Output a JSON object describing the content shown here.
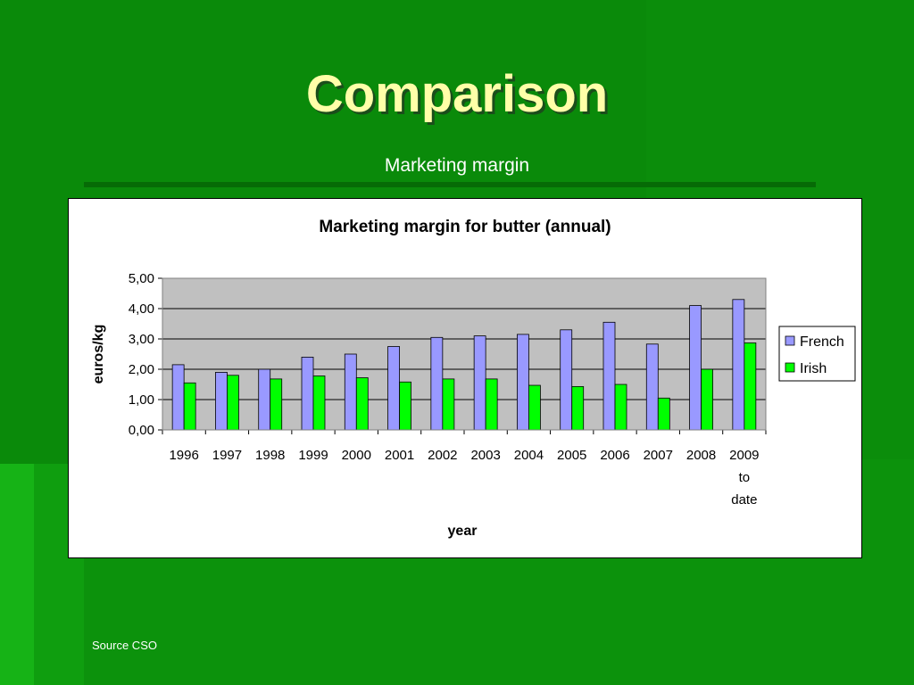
{
  "slide": {
    "title": "Comparison",
    "subtitle": "Marketing margin",
    "source": "Source CSO"
  },
  "colors": {
    "french": "#9999ff",
    "irish": "#00ff00",
    "plot_bg": "#c0c0c0"
  },
  "chart_data": {
    "type": "bar",
    "title": "Marketing margin for butter (annual)",
    "xlabel": "year",
    "ylabel": "euros/kg",
    "categories": [
      "1996",
      "1997",
      "1998",
      "1999",
      "2000",
      "2001",
      "2002",
      "2003",
      "2004",
      "2005",
      "2006",
      "2007",
      "2008",
      "2009 to date"
    ],
    "series": [
      {
        "name": "French",
        "values": [
          2.15,
          1.9,
          2.0,
          2.4,
          2.5,
          2.75,
          3.05,
          3.1,
          3.15,
          3.3,
          3.55,
          2.83,
          4.1,
          4.3
        ]
      },
      {
        "name": "Irish",
        "values": [
          1.55,
          1.8,
          1.68,
          1.78,
          1.72,
          1.58,
          1.68,
          1.68,
          1.47,
          1.43,
          1.5,
          1.05,
          2.0,
          2.87
        ]
      }
    ],
    "ylim": [
      0,
      5
    ],
    "yticks": [
      "0,00",
      "1,00",
      "2,00",
      "3,00",
      "4,00",
      "5,00"
    ],
    "grid": true,
    "legend_position": "right"
  }
}
